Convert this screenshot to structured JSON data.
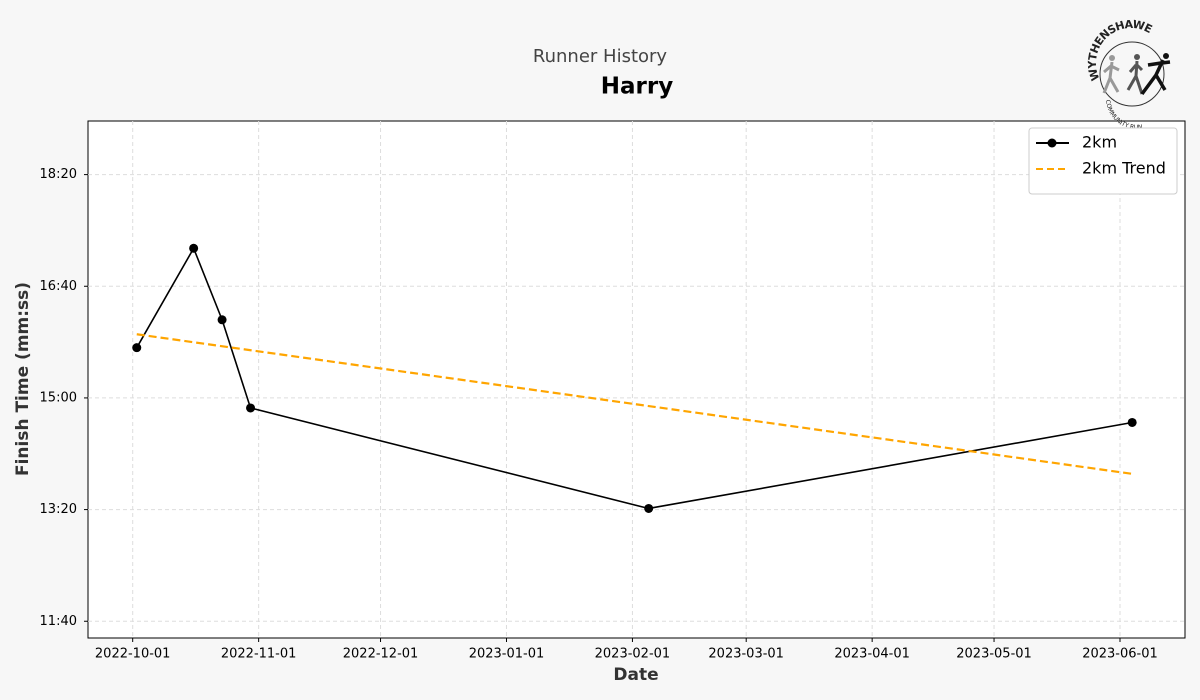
{
  "chart_data": {
    "type": "line",
    "subtitle": "Runner History",
    "title": "Harry",
    "xlabel": "Date",
    "ylabel": "Finish Time (mm:ss)",
    "logo": {
      "top": "WYTHENSHAWE",
      "bottom": "COMMUNITY RUN"
    },
    "xlim": [
      "2022-09-20",
      "2023-06-17"
    ],
    "xticks": [
      "2022-10-01",
      "2022-11-01",
      "2022-12-01",
      "2023-01-01",
      "2023-02-01",
      "2023-03-01",
      "2023-04-01",
      "2023-05-01",
      "2023-06-01"
    ],
    "ylim": [
      685,
      1148
    ],
    "yticks": [
      {
        "value": 700,
        "label": "11:40"
      },
      {
        "value": 800,
        "label": "13:20"
      },
      {
        "value": 900,
        "label": "15:00"
      },
      {
        "value": 1000,
        "label": "16:40"
      },
      {
        "value": 1100,
        "label": "18:20"
      }
    ],
    "grid": true,
    "legend": "upper right",
    "series": [
      {
        "name": "2km",
        "color": "#000000",
        "style": "solid",
        "markers": true,
        "x": [
          "2022-10-02",
          "2022-10-16",
          "2022-10-23",
          "2022-10-30",
          "2023-02-05",
          "2023-06-04"
        ],
        "values": [
          945,
          1034,
          970,
          891,
          801,
          878
        ]
      },
      {
        "name": "2km Trend",
        "color": "#FFA500",
        "style": "dashed",
        "markers": false,
        "x": [
          "2022-10-02",
          "2023-06-04"
        ],
        "values": [
          957,
          832
        ]
      }
    ]
  }
}
